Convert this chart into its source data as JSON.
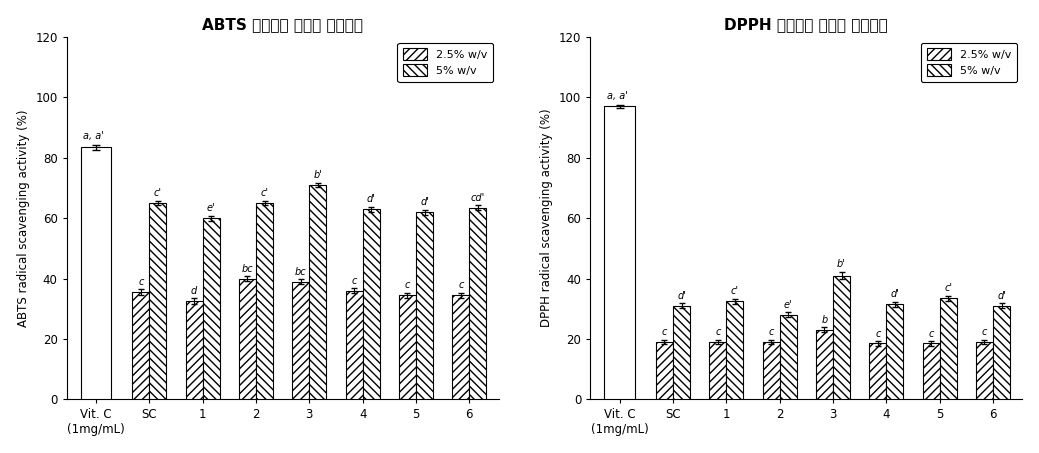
{
  "abts_title": "ABTS 라디칼을 이용한 소거활성",
  "dpph_title": "DPPH 라디칼을 이용한 소거활성",
  "abts_ylabel": "ABTS radical scavenging activity (%)",
  "dpph_ylabel": "DPPH radical scavenging activity (%)",
  "categories": [
    "Vit. C\n(1mg/mL)",
    "SC",
    "1",
    "2",
    "3",
    "4",
    "5",
    "6"
  ],
  "abts_vals_low": [
    83.5,
    35.5,
    32.5,
    40.0,
    39.0,
    36.0,
    34.5,
    34.5
  ],
  "abts_vals_high": [
    83.5,
    65.0,
    60.0,
    65.0,
    71.0,
    63.0,
    62.0,
    63.5
  ],
  "abts_err_low": [
    0.8,
    1.0,
    1.0,
    0.8,
    0.8,
    0.8,
    0.8,
    0.8
  ],
  "abts_err_high": [
    0.8,
    0.8,
    0.8,
    0.8,
    0.8,
    0.8,
    0.8,
    0.8
  ],
  "dpph_vals_low": [
    97.0,
    19.0,
    19.0,
    19.0,
    23.0,
    18.5,
    18.5,
    19.0
  ],
  "dpph_vals_high": [
    97.0,
    31.0,
    32.5,
    28.0,
    41.0,
    31.5,
    33.5,
    31.0
  ],
  "dpph_err_low": [
    0.5,
    0.8,
    0.8,
    0.8,
    0.8,
    0.8,
    0.8,
    0.8
  ],
  "dpph_err_high": [
    0.5,
    0.8,
    0.8,
    0.8,
    1.2,
    0.8,
    0.8,
    0.8
  ],
  "abts_labels_low": [
    "a, a'",
    "c",
    "d",
    "bc",
    "bc",
    "c",
    "c",
    "c"
  ],
  "abts_labels_high": [
    "",
    "c'",
    "e'",
    "c'",
    "b'",
    "d'",
    "d'",
    "cd'"
  ],
  "dpph_labels_low": [
    "a, a'",
    "c",
    "c",
    "c",
    "b",
    "c",
    "c",
    "c"
  ],
  "dpph_labels_high": [
    "",
    "d'",
    "c'",
    "e'",
    "b'",
    "d'",
    "c'",
    "d'"
  ],
  "ylim": [
    0,
    120
  ],
  "yticks": [
    0,
    20,
    40,
    60,
    80,
    100,
    120
  ],
  "legend_labels": [
    "2.5% w/v",
    "5% w/v"
  ],
  "hatch_low": "////",
  "hatch_high": "\\\\\\\\",
  "bar_color": "white",
  "bar_edgecolor": "black",
  "label_fontsize": 7.0,
  "title_fontsize": 11,
  "axis_label_fontsize": 8.5,
  "tick_fontsize": 8.5,
  "bar_width": 0.32,
  "bar_linewidth": 0.8
}
